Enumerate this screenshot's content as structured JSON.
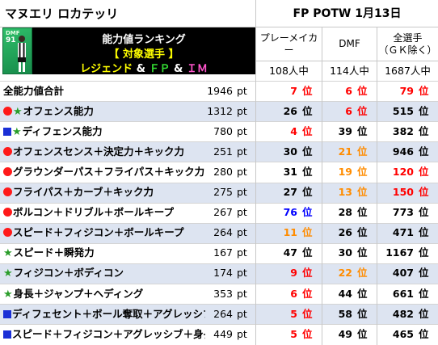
{
  "header": {
    "player_name": "マヌエリ ロカテッリ",
    "event": "FP POTW 1月13日",
    "card": {
      "position": "DMF",
      "rating": "91"
    },
    "ranking_title": "能力値ランキング",
    "target_label": "【 対象選手 】",
    "kinds": {
      "legend": "レジェンド",
      "amp1": " & ",
      "fp": "ＦＰ",
      "amp2": " & ",
      "im": "ＩＭ"
    }
  },
  "columns": [
    {
      "title": "プレーメイカー",
      "count": "108人中"
    },
    {
      "title": "DMF",
      "count": "114人中"
    },
    {
      "title": "全選手\n（ＧＫ除く）",
      "count": "1687人中"
    }
  ],
  "rank_unit": "位",
  "pt_unit": "pt",
  "colors": {
    "top3": "#ff0000",
    "top20": "#ff8c00",
    "top100": "#0000ff",
    "normal": "#000000",
    "alt_row": "#dde4f1",
    "star": "#2a9d2a",
    "circle": "#ff1a1a",
    "square": "#1a2fd6"
  },
  "rows": [
    {
      "marker": "",
      "label": "全能力値合計",
      "value": "1946",
      "ranks": [
        {
          "n": "7",
          "tier": "top3"
        },
        {
          "n": "6",
          "tier": "top3"
        },
        {
          "n": "79",
          "tier": "top3"
        }
      ]
    },
    {
      "marker": "circle-star",
      "label": "オフェンス能力",
      "value": "1312",
      "ranks": [
        {
          "n": "26",
          "tier": "normal"
        },
        {
          "n": "6",
          "tier": "top3"
        },
        {
          "n": "515",
          "tier": "normal"
        }
      ]
    },
    {
      "marker": "square-star",
      "label": "ディフェンス能力",
      "value": "780",
      "ranks": [
        {
          "n": "4",
          "tier": "top3"
        },
        {
          "n": "39",
          "tier": "normal"
        },
        {
          "n": "382",
          "tier": "normal"
        }
      ]
    },
    {
      "marker": "circle",
      "label": "オフェンスセンス＋決定力＋キック力",
      "value": "251",
      "ranks": [
        {
          "n": "30",
          "tier": "normal"
        },
        {
          "n": "21",
          "tier": "top20"
        },
        {
          "n": "946",
          "tier": "normal"
        }
      ]
    },
    {
      "marker": "circle",
      "label": "グラウンダーパス＋フライパス＋キック力",
      "value": "280",
      "ranks": [
        {
          "n": "31",
          "tier": "normal"
        },
        {
          "n": "19",
          "tier": "top20"
        },
        {
          "n": "120",
          "tier": "top3"
        }
      ]
    },
    {
      "marker": "circle",
      "label": "フライパス＋カーブ＋キック力",
      "value": "275",
      "ranks": [
        {
          "n": "27",
          "tier": "normal"
        },
        {
          "n": "13",
          "tier": "top20"
        },
        {
          "n": "150",
          "tier": "top3"
        }
      ]
    },
    {
      "marker": "circle",
      "label": "ボルコン＋ドリブル＋ボールキープ",
      "value": "267",
      "ranks": [
        {
          "n": "76",
          "tier": "top100"
        },
        {
          "n": "28",
          "tier": "normal"
        },
        {
          "n": "773",
          "tier": "normal"
        }
      ]
    },
    {
      "marker": "circle",
      "label": "スピード＋フィジコン＋ボールキープ",
      "value": "264",
      "ranks": [
        {
          "n": "11",
          "tier": "top20"
        },
        {
          "n": "26",
          "tier": "normal"
        },
        {
          "n": "471",
          "tier": "normal"
        }
      ]
    },
    {
      "marker": "star",
      "label": "スピード＋瞬発力",
      "value": "167",
      "ranks": [
        {
          "n": "47",
          "tier": "normal"
        },
        {
          "n": "30",
          "tier": "normal"
        },
        {
          "n": "1167",
          "tier": "normal"
        }
      ]
    },
    {
      "marker": "star",
      "label": "フィジコン＋ボディコン",
      "value": "174",
      "ranks": [
        {
          "n": "9",
          "tier": "top3"
        },
        {
          "n": "22",
          "tier": "top20"
        },
        {
          "n": "407",
          "tier": "normal"
        }
      ]
    },
    {
      "marker": "star",
      "label": "身長＋ジャンプ＋ヘディング",
      "value": "353",
      "ranks": [
        {
          "n": "6",
          "tier": "top3"
        },
        {
          "n": "44",
          "tier": "normal"
        },
        {
          "n": "661",
          "tier": "normal"
        }
      ]
    },
    {
      "marker": "square",
      "label": "ディフェセント＋ボール奪取＋アグレッシブ",
      "value": "264",
      "ranks": [
        {
          "n": "5",
          "tier": "top3"
        },
        {
          "n": "58",
          "tier": "normal"
        },
        {
          "n": "482",
          "tier": "normal"
        }
      ]
    },
    {
      "marker": "square",
      "label": "スピード＋フィジコン＋アグレッシブ＋身長",
      "value": "449",
      "ranks": [
        {
          "n": "5",
          "tier": "top3"
        },
        {
          "n": "49",
          "tier": "normal"
        },
        {
          "n": "465",
          "tier": "normal"
        }
      ]
    }
  ]
}
